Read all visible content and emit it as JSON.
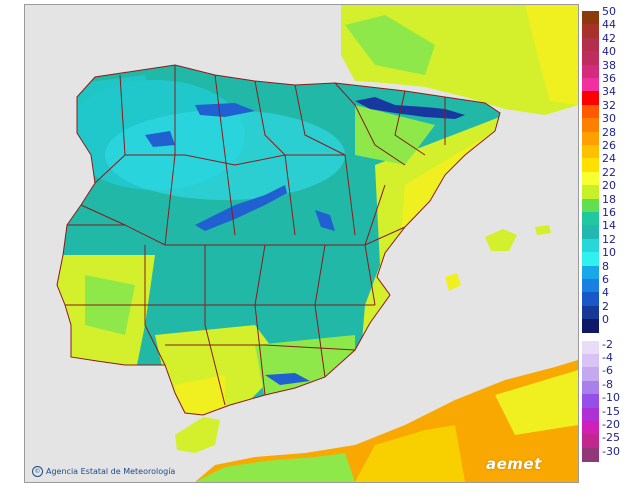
{
  "map": {
    "colors": {
      "sea": "#e4e4e4",
      "temp_8_10": "#1ca6d8",
      "temp_10_12": "#2fd8e4",
      "temp_12_14": "#20c8cc",
      "temp_14_16": "#22b8a8",
      "temp_16_18": "#3ccc7c",
      "temp_18_20": "#8ee84a",
      "temp_20_22": "#d4f02c",
      "temp_22_24": "#f0f020",
      "temp_24_26": "#f8d000",
      "temp_26_28": "#f8a800",
      "temp_4_6": "#2060d0",
      "temp_2_4": "#1838a0",
      "border": "#8b1a1a"
    },
    "attribution": "Agencia Estatal de Meteorología",
    "watermark": "aemet"
  },
  "legend": {
    "positive": [
      {
        "label": "50",
        "color": "#8b3a0c"
      },
      {
        "label": "44",
        "color": "#a8322a"
      },
      {
        "label": "42",
        "color": "#b4304a"
      },
      {
        "label": "40",
        "color": "#c02c60"
      },
      {
        "label": "38",
        "color": "#d42c7c"
      },
      {
        "label": "36",
        "color": "#f030a0"
      },
      {
        "label": "34",
        "color": "#ff0000"
      },
      {
        "label": "32",
        "color": "#ff5a00"
      },
      {
        "label": "30",
        "color": "#ff8000"
      },
      {
        "label": "28",
        "color": "#ffa000"
      },
      {
        "label": "26",
        "color": "#ffc000"
      },
      {
        "label": "24",
        "color": "#ffe000"
      },
      {
        "label": "22",
        "color": "#f8ff30"
      },
      {
        "label": "20",
        "color": "#c8f028"
      },
      {
        "label": "18",
        "color": "#60e050"
      },
      {
        "label": "16",
        "color": "#20c8a0"
      },
      {
        "label": "14",
        "color": "#20b8b0"
      },
      {
        "label": "12",
        "color": "#28d8d8"
      },
      {
        "label": "10",
        "color": "#30f0f0"
      },
      {
        "label": "8",
        "color": "#18a8e8"
      },
      {
        "label": "6",
        "color": "#1880e0"
      },
      {
        "label": "4",
        "color": "#1858c8"
      },
      {
        "label": "2",
        "color": "#183898"
      },
      {
        "label": "0",
        "color": "#101868"
      }
    ],
    "negative": [
      {
        "label": "-2",
        "color": "#e8dcf8"
      },
      {
        "label": "-4",
        "color": "#d8c4f4"
      },
      {
        "label": "-6",
        "color": "#c4a8f0"
      },
      {
        "label": "-8",
        "color": "#a880ec"
      },
      {
        "label": "-10",
        "color": "#9450e8"
      },
      {
        "label": "-15",
        "color": "#b030d8"
      },
      {
        "label": "-20",
        "color": "#d020b8"
      },
      {
        "label": "-25",
        "color": "#c02890"
      },
      {
        "label": "-30",
        "color": "#903878"
      }
    ]
  }
}
